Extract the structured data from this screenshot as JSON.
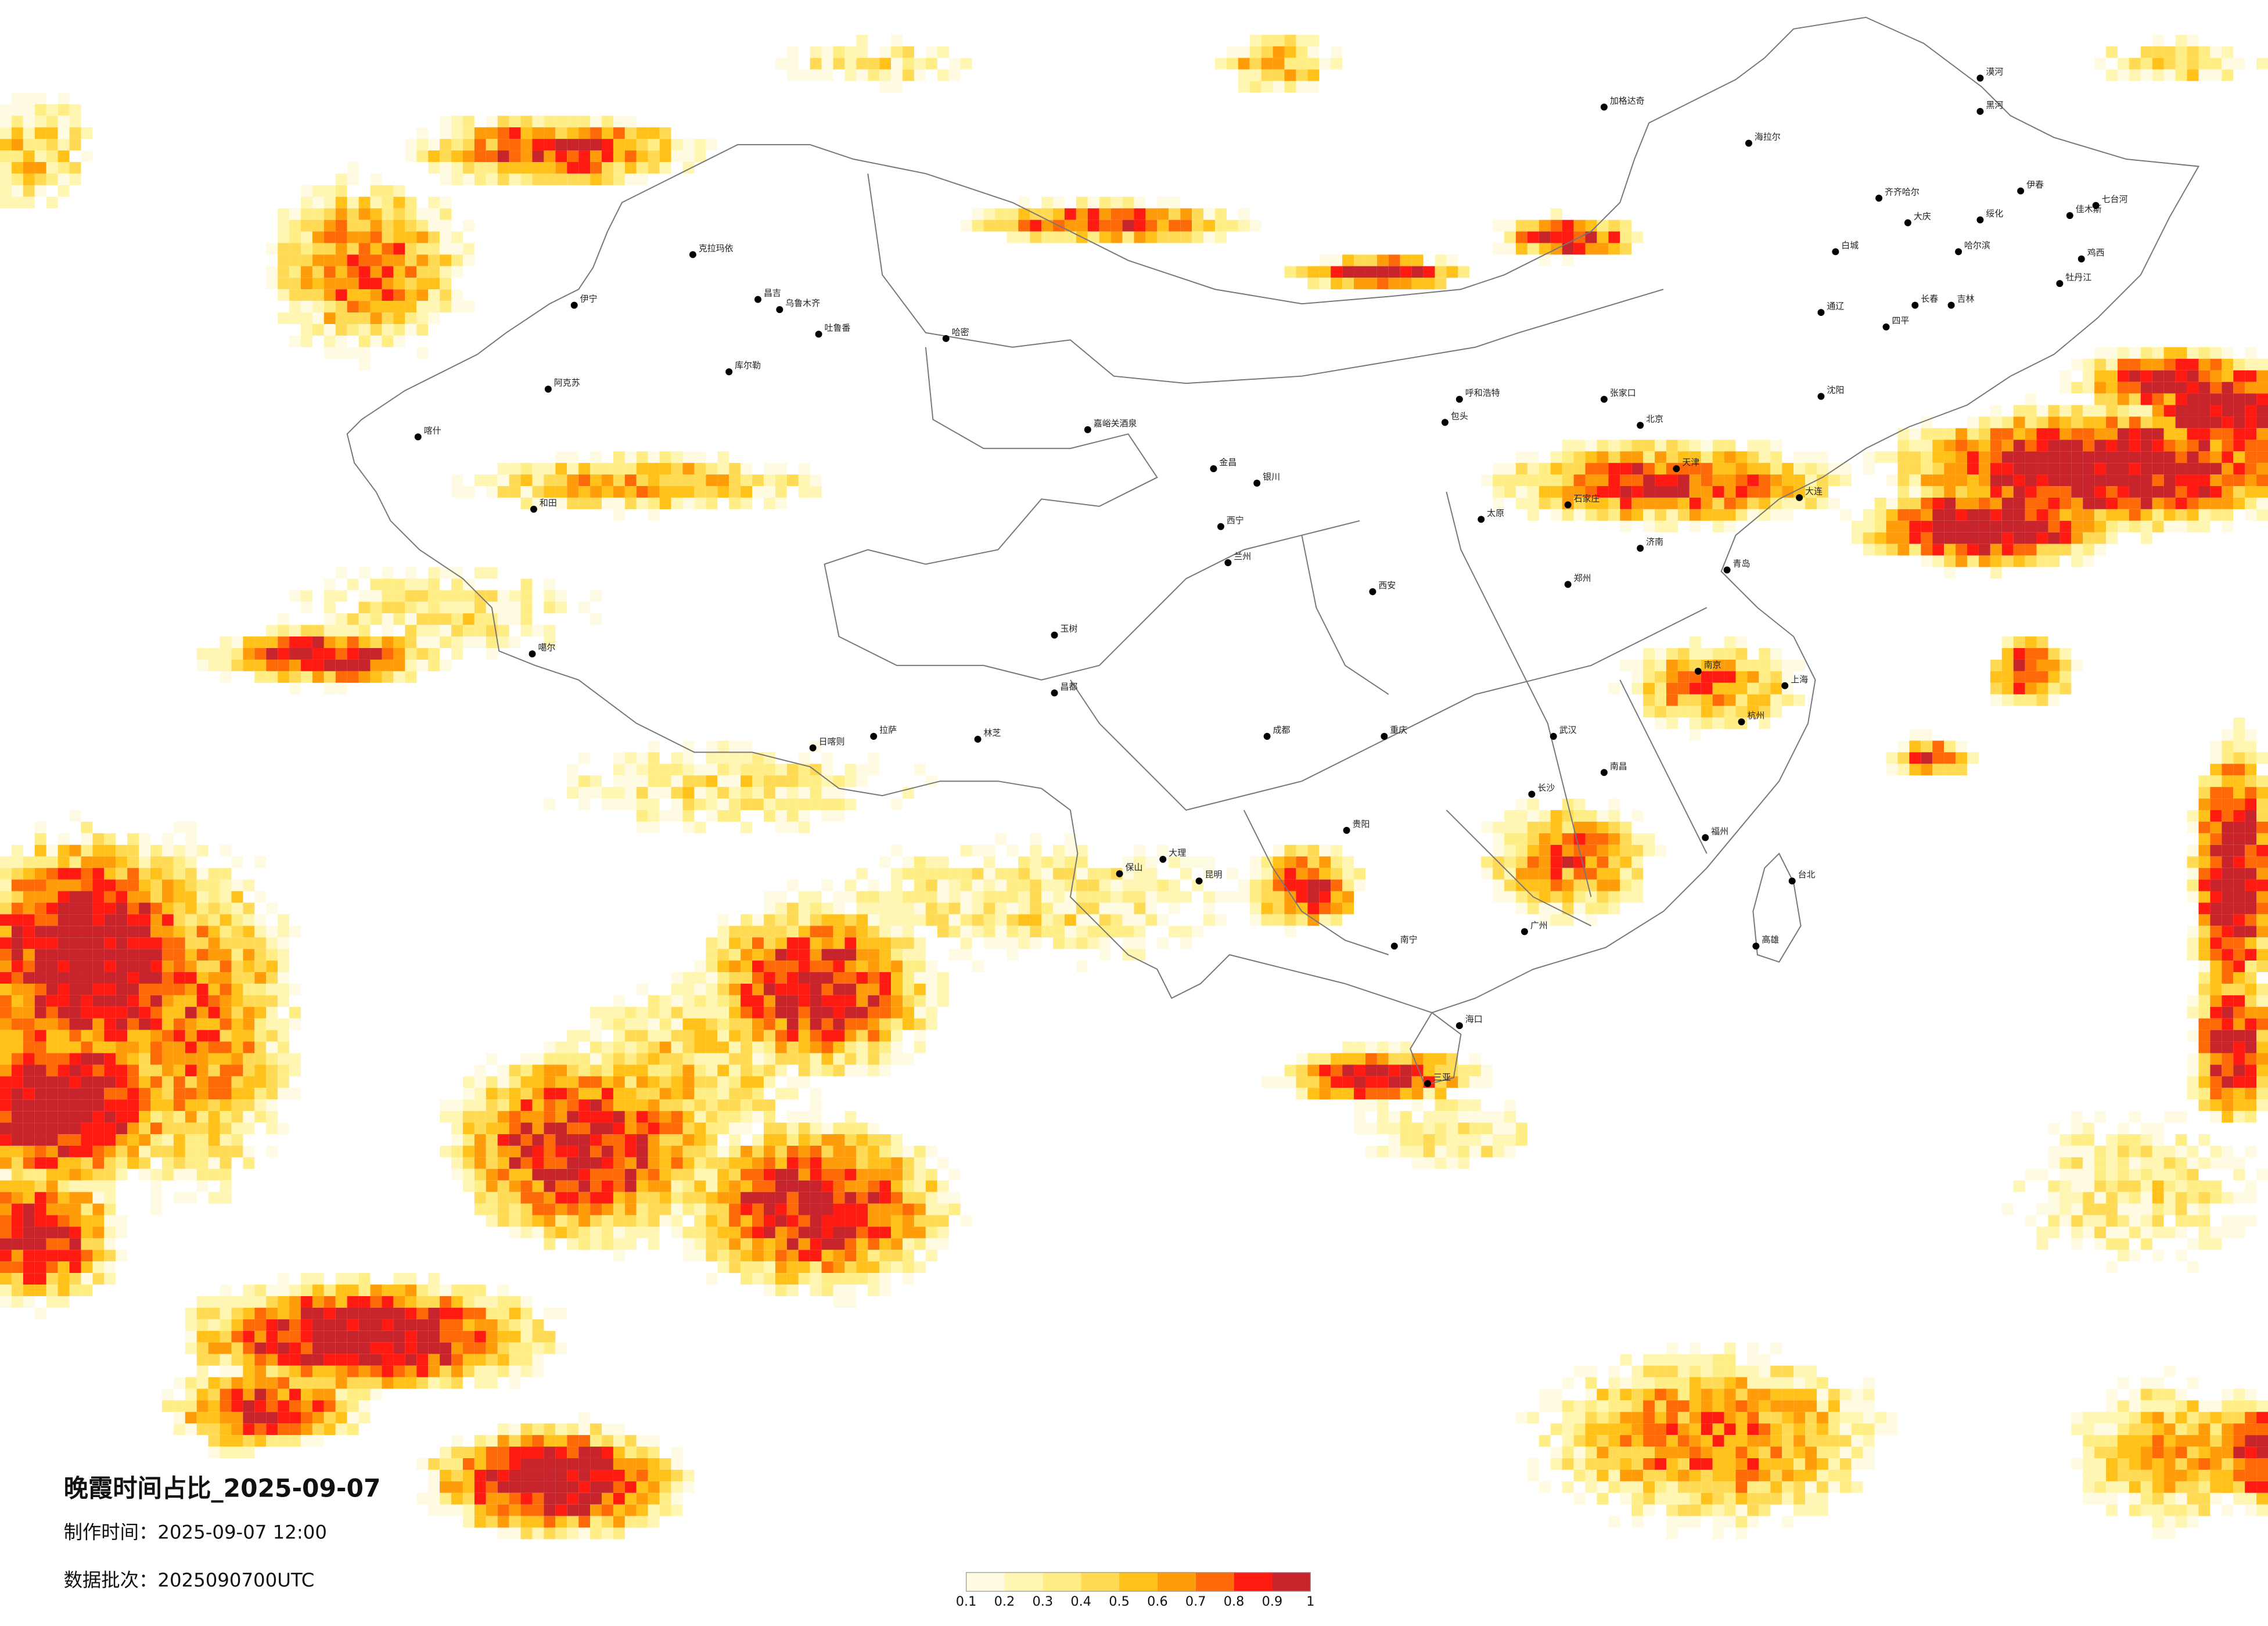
{
  "title": "晚霞时间占比_2025-09-07",
  "made_time": "制作时间：2025-09-07 12:00",
  "batch": "数据批次：2025090700UTC",
  "legend": {
    "ticks": [
      0.1,
      0.2,
      0.3,
      0.4,
      0.5,
      0.6,
      0.7,
      0.8,
      0.9,
      1
    ],
    "colors": [
      "#fffbe2",
      "#fff6b4",
      "#ffee86",
      "#ffdb55",
      "#ffc11a",
      "#ff9c0a",
      "#ff6a08",
      "#ff1a12",
      "#c8242c"
    ]
  },
  "cities": [
    "漠河",
    "加格达奇",
    "黑河",
    "海拉尔",
    "齐齐哈尔",
    "大庆",
    "绥化",
    "伊春",
    "佳木斯",
    "七台河",
    "哈尔滨",
    "鸡西",
    "牡丹江",
    "白城",
    "长春",
    "吉林",
    "通辽",
    "四平",
    "沈阳",
    "大连",
    "克拉玛依",
    "昌吉",
    "乌鲁木齐",
    "吐鲁番",
    "哈密",
    "库尔勒",
    "伊宁",
    "阿克苏",
    "喀什",
    "和田",
    "嘉峪关酒泉",
    "金昌",
    "银川",
    "兰州",
    "西宁",
    "呼和浩特",
    "包头",
    "张家口",
    "北京",
    "天津",
    "石家庄",
    "太原",
    "济南",
    "青岛",
    "郑州",
    "西安",
    "南京",
    "上海",
    "杭州",
    "武汉",
    "南昌",
    "长沙",
    "福州",
    "台北",
    "高雄",
    "广州",
    "南宁",
    "海口",
    "三亚",
    "贵阳",
    "昆明",
    "大理",
    "保山",
    "成都",
    "重庆",
    "玉树",
    "昌都",
    "日喀则",
    "拉萨",
    "林芝",
    "噶尔"
  ]
}
